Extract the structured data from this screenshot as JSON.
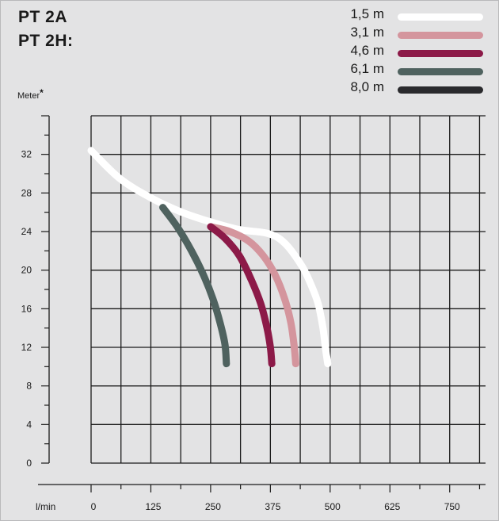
{
  "titles": {
    "line1": "PT 2A",
    "line2": "PT 2H:"
  },
  "legend": [
    {
      "label": "1,5 m",
      "color": "#ffffff"
    },
    {
      "label": "3,1 m",
      "color": "#d4959d"
    },
    {
      "label": "4,6 m",
      "color": "#8c1a48"
    },
    {
      "label": "6,1 m",
      "color": "#4f625f"
    },
    {
      "label": "8,0 m",
      "color": "#2a2a2d"
    }
  ],
  "chart_data": {
    "type": "line",
    "ylabel": "Meter",
    "ylabel_mark": "*",
    "xlabel": "l/min",
    "xlim": [
      0,
      825
    ],
    "ylim": [
      0,
      36
    ],
    "x_ticks": [
      "0",
      "125",
      "250",
      "375",
      "500",
      "625",
      "750"
    ],
    "x_tick_values": [
      0,
      125,
      250,
      375,
      500,
      625,
      750
    ],
    "y_ticks": [
      "0",
      "4",
      "8",
      "12",
      "16",
      "20",
      "24",
      "28",
      "32"
    ],
    "y_tick_values": [
      0,
      4,
      8,
      12,
      16,
      20,
      24,
      28,
      32
    ],
    "grid": true,
    "legend_position": "top-right",
    "series": [
      {
        "name": "1,5 m",
        "color": "#ffffff",
        "x": [
          0,
          60,
          125,
          190,
          250,
          310,
          370,
          405,
          440,
          460,
          475,
          485,
          490,
          495
        ],
        "y": [
          32.4,
          29.5,
          27.5,
          26.0,
          25.0,
          24.2,
          23.8,
          22.8,
          20.5,
          18.5,
          16.5,
          14.0,
          12.0,
          10.3
        ]
      },
      {
        "name": "3,1 m",
        "color": "#d4959d",
        "x": [
          250,
          290,
          330,
          360,
          385,
          405,
          418,
          425,
          428
        ],
        "y": [
          24.5,
          24.0,
          23.0,
          21.5,
          19.5,
          17.0,
          14.5,
          12.0,
          10.3
        ]
      },
      {
        "name": "4,6 m",
        "color": "#8c1a48",
        "x": [
          250,
          280,
          310,
          335,
          355,
          368,
          375,
          378
        ],
        "y": [
          24.5,
          23.3,
          21.5,
          19.0,
          16.5,
          14.0,
          12.0,
          10.3
        ]
      },
      {
        "name": "6,1 m",
        "color": "#4f625f",
        "x": [
          150,
          180,
          210,
          235,
          255,
          270,
          280,
          283
        ],
        "y": [
          26.5,
          24.5,
          22.0,
          19.5,
          17.0,
          14.5,
          12.3,
          10.3
        ]
      }
    ]
  }
}
